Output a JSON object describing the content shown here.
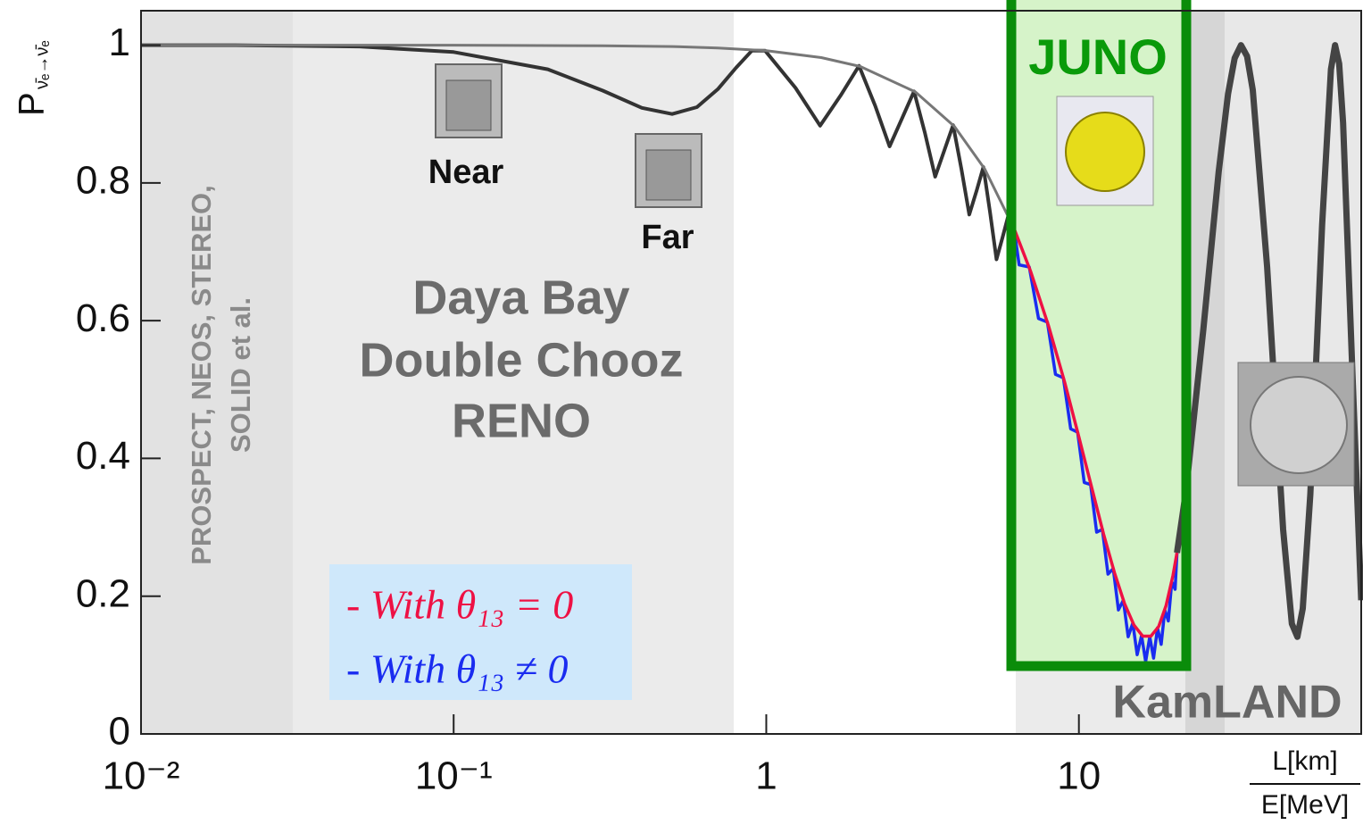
{
  "chart_data": {
    "type": "line",
    "ylabel": "P",
    "ylabel_sub": "ν̄ₑ→ν̄ₑ",
    "xlabel_top": "L[km]",
    "xlabel_bottom": "E[MeV]",
    "log_x": true,
    "xlim": [
      0.01,
      80
    ],
    "ylim": [
      0,
      1.05
    ],
    "xticks": [
      {
        "value": 0.01,
        "label": "10⁻²"
      },
      {
        "value": 0.1,
        "label": "10⁻¹"
      },
      1,
      10
    ],
    "yticks": [
      0,
      0.2,
      0.4,
      0.6,
      0.8,
      1
    ],
    "labels": {
      "near": "Near",
      "far": "Far",
      "short": [
        "PROSPECT, NEOS, STEREO,",
        "SOLID et al."
      ],
      "medium": [
        "Daya Bay",
        "Double Chooz",
        "RENO"
      ],
      "juno": "JUNO",
      "kamland": "KamLAND"
    },
    "series": [
      {
        "color": "#333333",
        "width": 4,
        "x": [
          0.01,
          0.02,
          0.05,
          0.1,
          0.2,
          0.3,
          0.4,
          0.5,
          0.6,
          0.7,
          0.8,
          0.9,
          0.991,
          1.24,
          1.487,
          1.73,
          1.98,
          2.23,
          2.48,
          2.72,
          2.97,
          3.22,
          3.47,
          3.71,
          3.96,
          4.21,
          4.46,
          4.71,
          4.95,
          5.2,
          5.45,
          5.7,
          5.95
        ],
        "values": [
          1,
          1,
          0.998,
          0.99,
          0.965,
          0.934,
          0.909,
          0.9,
          0.91,
          0.936,
          0.967,
          0.992,
          0.992,
          0.938,
          0.883,
          0.927,
          0.97,
          0.912,
          0.853,
          0.894,
          0.933,
          0.872,
          0.809,
          0.847,
          0.884,
          0.82,
          0.754,
          0.789,
          0.823,
          0.757,
          0.689,
          0.721,
          0.753
        ]
      },
      {
        "color": "#777777",
        "width": 3,
        "x": [
          0.01,
          0.1,
          0.3,
          0.5,
          0.7,
          1,
          1.5,
          2,
          3,
          4,
          5,
          6.2
        ],
        "values": [
          1,
          1,
          0.999,
          0.998,
          0.996,
          0.992,
          0.982,
          0.969,
          0.932,
          0.882,
          0.82,
          0.734
        ]
      },
      {
        "name": "- With θ₁₃ = 0",
        "color": "#ee1144",
        "width": 3.5,
        "x": [
          6.2,
          7,
          8,
          9,
          10,
          11,
          12,
          13,
          14,
          15,
          16,
          17,
          18,
          19,
          20,
          20.6
        ],
        "values": [
          0.734,
          0.672,
          0.592,
          0.511,
          0.431,
          0.357,
          0.29,
          0.234,
          0.189,
          0.158,
          0.142,
          0.142,
          0.156,
          0.186,
          0.23,
          0.263
        ]
      },
      {
        "name": "- With θ₁₃ ≠ 0",
        "color": "#1a2cf0",
        "width": 3.5,
        "x": [
          6.2,
          6.44,
          6.94,
          7.43,
          7.93,
          8.42,
          8.92,
          9.41,
          9.91,
          10.4,
          10.9,
          11.4,
          11.89,
          12.39,
          12.88,
          13.38,
          13.87,
          14.37,
          14.87,
          15.36,
          15.86,
          16.35,
          16.85,
          17.34,
          17.84,
          18.33,
          18.83,
          19.32,
          19.82,
          20.31,
          20.6
        ],
        "values": [
          0.734,
          0.681,
          0.678,
          0.603,
          0.598,
          0.522,
          0.517,
          0.443,
          0.438,
          0.365,
          0.362,
          0.293,
          0.297,
          0.232,
          0.24,
          0.18,
          0.194,
          0.141,
          0.161,
          0.115,
          0.143,
          0.105,
          0.141,
          0.11,
          0.154,
          0.13,
          0.18,
          0.164,
          0.221,
          0.21,
          0.263
        ]
      },
      {
        "color": "#444444",
        "width": 7,
        "x": [
          20.6,
          22,
          25,
          28,
          30,
          31.5,
          33,
          34.5,
          36,
          40,
          45,
          48,
          50,
          52,
          55,
          60,
          64,
          66,
          68,
          70,
          75,
          80
        ],
        "values": [
          0.263,
          0.352,
          0.587,
          0.816,
          0.929,
          0.981,
          1,
          0.984,
          0.935,
          0.678,
          0.297,
          0.16,
          0.141,
          0.182,
          0.348,
          0.739,
          0.965,
          1,
          0.973,
          0.887,
          0.522,
          0.194
        ]
      }
    ]
  }
}
